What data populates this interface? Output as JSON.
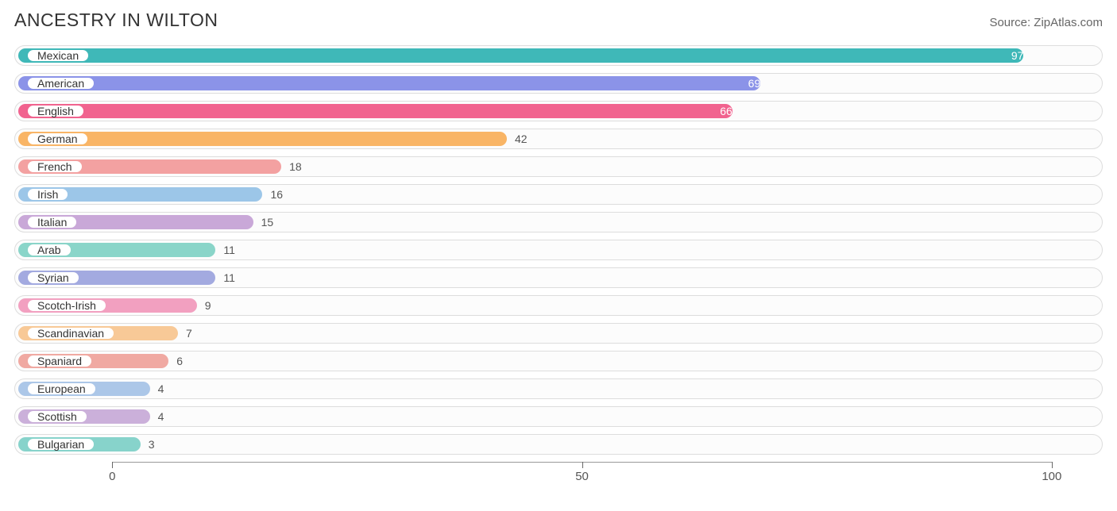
{
  "header": {
    "title": "ANCESTRY IN WILTON",
    "source": "Source: ZipAtlas.com"
  },
  "chart": {
    "type": "bar",
    "xlim": [
      -10,
      105
    ],
    "ticks": [
      0,
      50,
      100
    ],
    "track_border_color": "#dddddd",
    "track_bg": "#fcfcfc",
    "label_fontsize": 14,
    "value_fontsize": 14,
    "inside_threshold": 60,
    "bars": [
      {
        "label": "Mexican",
        "value": 97,
        "color": "#3fb8b8"
      },
      {
        "label": "American",
        "value": 69,
        "color": "#8b93e8"
      },
      {
        "label": "English",
        "value": 66,
        "color": "#f1638f"
      },
      {
        "label": "German",
        "value": 42,
        "color": "#f9b566"
      },
      {
        "label": "French",
        "value": 18,
        "color": "#f3a1a1"
      },
      {
        "label": "Irish",
        "value": 16,
        "color": "#9cc6e8"
      },
      {
        "label": "Italian",
        "value": 15,
        "color": "#c9a8d8"
      },
      {
        "label": "Arab",
        "value": 11,
        "color": "#8ad5c9"
      },
      {
        "label": "Syrian",
        "value": 11,
        "color": "#a3aae0"
      },
      {
        "label": "Scotch-Irish",
        "value": 9,
        "color": "#f2a0c0"
      },
      {
        "label": "Scandinavian",
        "value": 7,
        "color": "#f8c997"
      },
      {
        "label": "Spaniard",
        "value": 6,
        "color": "#f0a9a2"
      },
      {
        "label": "European",
        "value": 4,
        "color": "#acc7e8"
      },
      {
        "label": "Scottish",
        "value": 4,
        "color": "#cbb0da"
      },
      {
        "label": "Bulgarian",
        "value": 3,
        "color": "#87d3cb"
      }
    ]
  }
}
